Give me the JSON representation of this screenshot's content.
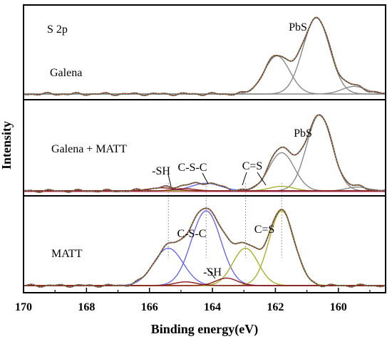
{
  "chart_data": {
    "type": "line",
    "xlabel": "Binding energy(eV)",
    "ylabel": "Intensity",
    "xlim": [
      170,
      158.5
    ],
    "x_reversed": true,
    "x_ticks": [
      170,
      168,
      166,
      164,
      162,
      160
    ],
    "grid": false,
    "colors": {
      "envelope": "#4a4a4a",
      "fit": "#e07a2e",
      "pbs_component": "#8a8a8a",
      "cs_c_component": "#6a6ae0",
      "c_eq_s_component": "#a8b030",
      "sh_component": "#8b1a1a",
      "background": "#e060a0",
      "reference_line": "#888888"
    },
    "panels": [
      {
        "name": "Galena",
        "labels": [
          "S 2p",
          "Galena",
          "PbS"
        ],
        "components": [
          {
            "name": "PbS",
            "center": 160.7,
            "fwhm": 1.0,
            "height": 1.0
          },
          {
            "name": "PbS",
            "center": 161.95,
            "fwhm": 0.95,
            "height": 0.5
          },
          {
            "name": "PbS",
            "center": 159.5,
            "fwhm": 0.9,
            "height": 0.1
          }
        ]
      },
      {
        "name": "Galena + MATT",
        "labels": [
          "Galena + MATT",
          "PbS",
          "-SH",
          "C-S-C",
          "C=S"
        ],
        "components": [
          {
            "name": "PbS",
            "center": 160.6,
            "fwhm": 0.95,
            "height": 1.0
          },
          {
            "name": "PbS",
            "center": 161.8,
            "fwhm": 0.95,
            "height": 0.5
          },
          {
            "name": "PbS",
            "center": 159.4,
            "fwhm": 0.8,
            "height": 0.05
          },
          {
            "name": "C-S-C",
            "center": 164.2,
            "fwhm": 1.1,
            "height": 0.1
          },
          {
            "name": "C=S",
            "center": 161.8,
            "fwhm": 0.9,
            "height": 0.06
          },
          {
            "name": "-SH",
            "center": 165.6,
            "fwhm": 1.0,
            "height": 0.04
          },
          {
            "name": "-SH",
            "center": 164.9,
            "fwhm": 0.8,
            "height": 0.03
          }
        ]
      },
      {
        "name": "MATT",
        "labels": [
          "MATT",
          "C-S-C",
          "-SH",
          "C=S"
        ],
        "components": [
          {
            "name": "C-S-C",
            "center": 164.2,
            "fwhm": 1.1,
            "height": 1.0
          },
          {
            "name": "C-S-C",
            "center": 165.4,
            "fwhm": 1.1,
            "height": 0.5
          },
          {
            "name": "C=S",
            "center": 161.8,
            "fwhm": 0.95,
            "height": 1.0
          },
          {
            "name": "C=S",
            "center": 162.95,
            "fwhm": 0.95,
            "height": 0.5
          },
          {
            "name": "-SH",
            "center": 163.55,
            "fwhm": 0.8,
            "height": 0.1
          },
          {
            "name": "-SH",
            "center": 164.85,
            "fwhm": 0.8,
            "height": 0.05
          }
        ]
      }
    ],
    "reference_lines_ev": [
      165.4,
      164.2,
      162.95,
      161.8
    ]
  }
}
